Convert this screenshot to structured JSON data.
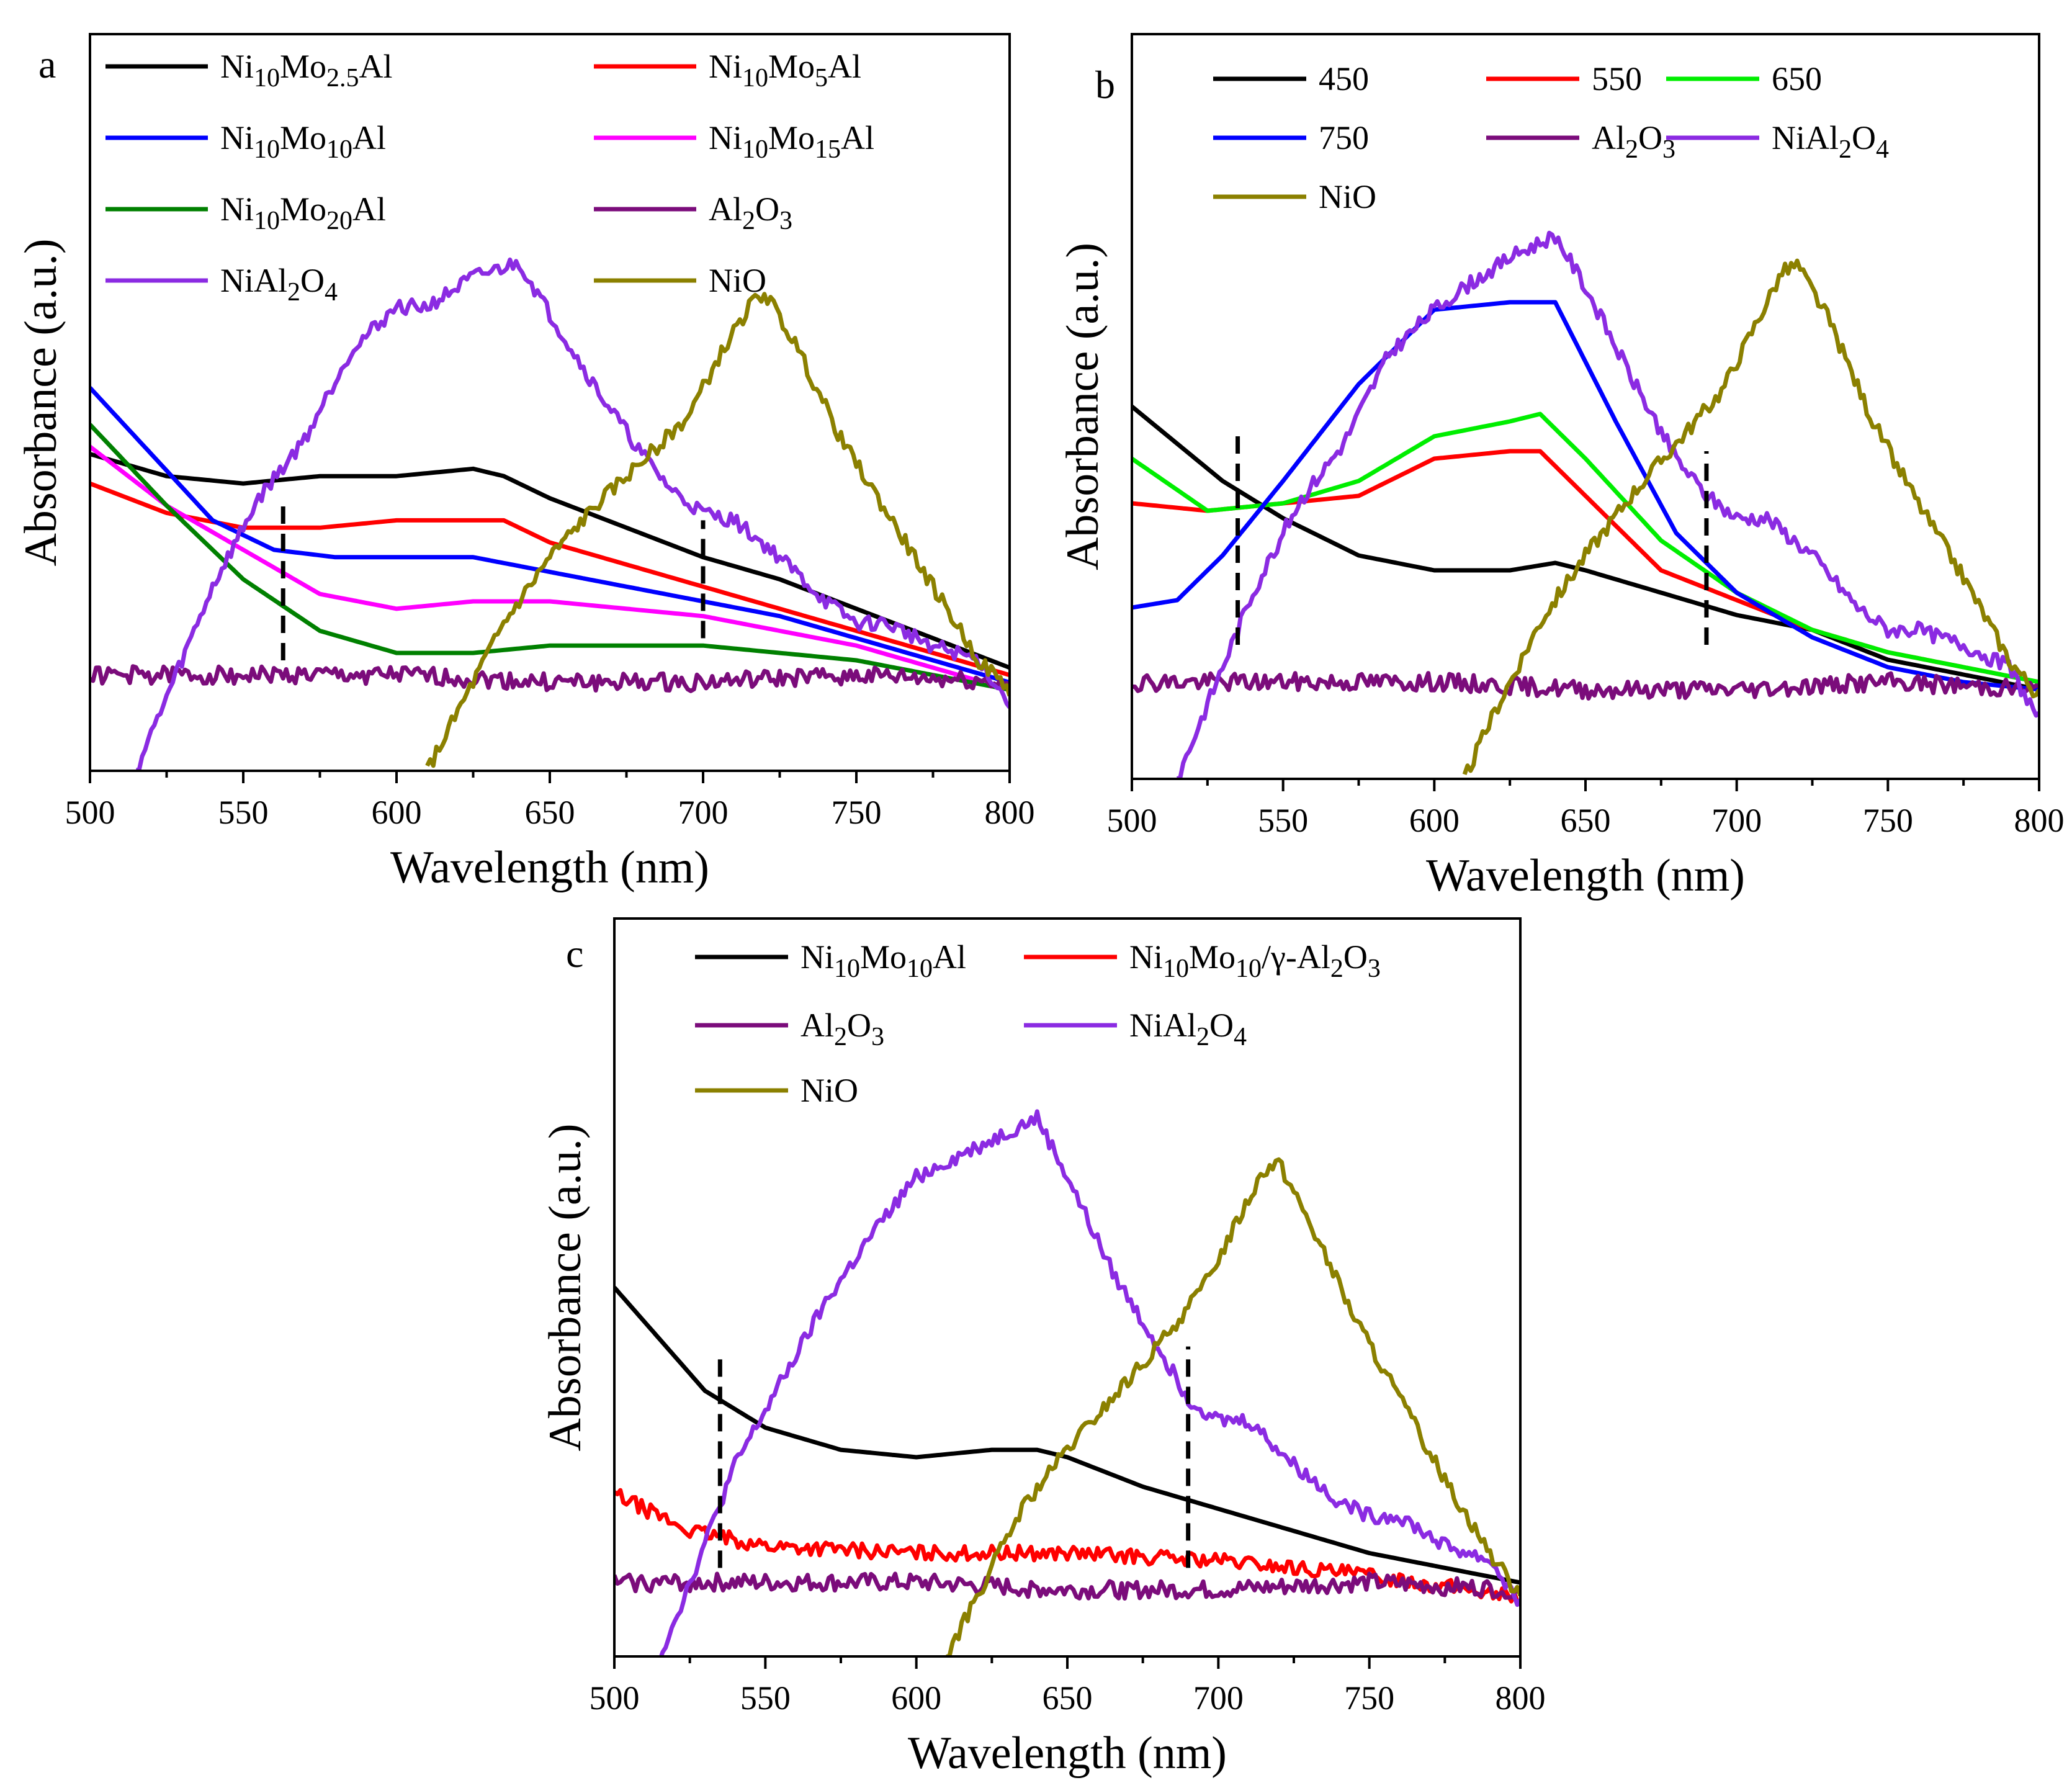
{
  "chart_data": [
    {
      "panel_label": "a",
      "type": "line",
      "xlabel": "Wavelength (nm)",
      "ylabel": "Absorbance (a.u.)",
      "xlim": [
        500,
        800
      ],
      "ylim": [
        0,
        1
      ],
      "x_ticks": [
        "500",
        "550",
        "600",
        "650",
        "700",
        "750",
        "800"
      ],
      "legend": [
        {
          "base": "Ni",
          "parts": [
            [
              "10",
              "sub"
            ],
            [
              "Mo",
              ""
            ],
            [
              "2.5",
              "sub"
            ],
            [
              "Al",
              ""
            ]
          ]
        },
        {
          "base": "Ni",
          "parts": [
            [
              "10",
              "sub"
            ],
            [
              "Mo",
              ""
            ],
            [
              "5",
              "sub"
            ],
            [
              "Al",
              ""
            ]
          ]
        },
        {
          "base": "Ni",
          "parts": [
            [
              "10",
              "sub"
            ],
            [
              "Mo",
              ""
            ],
            [
              "10",
              "sub"
            ],
            [
              "Al",
              ""
            ]
          ]
        },
        {
          "base": "Ni",
          "parts": [
            [
              "10",
              "sub"
            ],
            [
              "Mo",
              ""
            ],
            [
              "15",
              "sub"
            ],
            [
              "Al",
              ""
            ]
          ]
        },
        {
          "base": "Ni",
          "parts": [
            [
              "10",
              "sub"
            ],
            [
              "Mo",
              ""
            ],
            [
              "20",
              "sub"
            ],
            [
              "Al",
              ""
            ]
          ]
        },
        {
          "base": "Al",
          "parts": [
            [
              "2",
              "sub"
            ],
            [
              "O",
              ""
            ],
            [
              "3",
              "sub"
            ]
          ]
        },
        {
          "base": "NiAl",
          "parts": [
            [
              "2",
              "sub"
            ],
            [
              "O",
              ""
            ],
            [
              "4",
              "sub"
            ]
          ]
        },
        {
          "base": "NiO",
          "parts": []
        }
      ],
      "dashed_markers": [
        {
          "x": 563,
          "y": [
            0.15,
            0.36
          ]
        },
        {
          "x": 700,
          "y": [
            0.18,
            0.34
          ]
        }
      ],
      "series": [
        {
          "name": "Ni10Mo2.5Al",
          "color": "#000000",
          "x": [
            500,
            525,
            550,
            575,
            600,
            625,
            635,
            650,
            675,
            700,
            725,
            750,
            775,
            800
          ],
          "values": [
            0.43,
            0.4,
            0.39,
            0.4,
            0.4,
            0.41,
            0.4,
            0.37,
            0.33,
            0.29,
            0.26,
            0.22,
            0.18,
            0.14
          ]
        },
        {
          "name": "Ni10Mo5Al",
          "color": "#ff0000",
          "x": [
            500,
            525,
            550,
            575,
            600,
            625,
            635,
            650,
            675,
            700,
            725,
            750,
            775,
            800
          ],
          "values": [
            0.39,
            0.35,
            0.33,
            0.33,
            0.34,
            0.34,
            0.34,
            0.31,
            0.28,
            0.25,
            0.22,
            0.19,
            0.16,
            0.13
          ]
        },
        {
          "name": "Ni10Mo10Al",
          "color": "#0000ff",
          "x": [
            500,
            520,
            540,
            560,
            580,
            600,
            625,
            650,
            675,
            700,
            725,
            750,
            775,
            800
          ],
          "values": [
            0.52,
            0.43,
            0.34,
            0.3,
            0.29,
            0.29,
            0.29,
            0.27,
            0.25,
            0.23,
            0.21,
            0.18,
            0.15,
            0.12
          ]
        },
        {
          "name": "Ni10Mo15Al",
          "color": "#ff00ff",
          "x": [
            500,
            525,
            550,
            575,
            600,
            625,
            650,
            675,
            700,
            725,
            750,
            775,
            800
          ],
          "values": [
            0.44,
            0.36,
            0.3,
            0.24,
            0.22,
            0.23,
            0.23,
            0.22,
            0.21,
            0.19,
            0.17,
            0.14,
            0.11
          ]
        },
        {
          "name": "Ni10Mo20Al",
          "color": "#008000",
          "x": [
            500,
            525,
            550,
            575,
            600,
            625,
            650,
            675,
            700,
            725,
            750,
            775,
            800
          ],
          "values": [
            0.47,
            0.36,
            0.26,
            0.19,
            0.16,
            0.16,
            0.17,
            0.17,
            0.17,
            0.16,
            0.15,
            0.13,
            0.11
          ]
        },
        {
          "name": "Al2O3",
          "color": "#7b0c7b",
          "noise": 0.012,
          "x": [
            500,
            550,
            600,
            650,
            700,
            750,
            800
          ],
          "values": [
            0.13,
            0.13,
            0.13,
            0.12,
            0.12,
            0.13,
            0.12
          ]
        },
        {
          "name": "NiAl2O4",
          "color": "#8b2be2",
          "noise": 0.01,
          "x": [
            515,
            525,
            540,
            555,
            570,
            585,
            600,
            610,
            625,
            640,
            650,
            665,
            680,
            690,
            700,
            710,
            725,
            740,
            750,
            760,
            775,
            790,
            800
          ],
          "values": [
            0.0,
            0.1,
            0.25,
            0.37,
            0.45,
            0.57,
            0.63,
            0.63,
            0.67,
            0.69,
            0.62,
            0.52,
            0.43,
            0.38,
            0.35,
            0.34,
            0.29,
            0.23,
            0.2,
            0.2,
            0.17,
            0.15,
            0.09
          ]
        },
        {
          "name": "NiO",
          "color": "#8b8000",
          "noise": 0.01,
          "x": [
            610,
            620,
            635,
            650,
            665,
            680,
            695,
            705,
            715,
            720,
            730,
            745,
            760,
            775,
            790,
            800
          ],
          "values": [
            0.0,
            0.08,
            0.2,
            0.29,
            0.36,
            0.42,
            0.48,
            0.56,
            0.63,
            0.65,
            0.58,
            0.45,
            0.35,
            0.25,
            0.15,
            0.11
          ]
        }
      ]
    },
    {
      "panel_label": "b",
      "type": "line",
      "xlabel": "Wavelength (nm)",
      "ylabel": "Absorbance (a.u.)",
      "xlim": [
        500,
        800
      ],
      "ylim": [
        0,
        1
      ],
      "x_ticks": [
        "500",
        "550",
        "600",
        "650",
        "700",
        "750",
        "800"
      ],
      "legend": [
        {
          "base": "450",
          "parts": []
        },
        {
          "base": "550",
          "parts": []
        },
        {
          "base": "650",
          "parts": []
        },
        {
          "base": "750",
          "parts": []
        },
        {
          "base": "Al",
          "parts": [
            [
              "2",
              "sub"
            ],
            [
              "O",
              ""
            ],
            [
              "3",
              "sub"
            ]
          ]
        },
        {
          "base": "NiAl",
          "parts": [
            [
              "2",
              "sub"
            ],
            [
              "O",
              ""
            ],
            [
              "4",
              "sub"
            ]
          ]
        },
        {
          "base": "NiO",
          "parts": []
        }
      ],
      "dashed_markers": [
        {
          "x": 535,
          "y": [
            0.18,
            0.46
          ]
        },
        {
          "x": 690,
          "y": [
            0.18,
            0.44
          ]
        }
      ],
      "series": [
        {
          "name": "450",
          "color": "#000000",
          "x": [
            500,
            515,
            530,
            550,
            575,
            600,
            625,
            640,
            650,
            675,
            700,
            725,
            750,
            775,
            800
          ],
          "values": [
            0.5,
            0.45,
            0.4,
            0.35,
            0.3,
            0.28,
            0.28,
            0.29,
            0.28,
            0.25,
            0.22,
            0.2,
            0.16,
            0.14,
            0.12
          ]
        },
        {
          "name": "550",
          "color": "#ff0000",
          "x": [
            500,
            525,
            550,
            575,
            600,
            625,
            635,
            650,
            675,
            700,
            725,
            750,
            775,
            800
          ],
          "values": [
            0.37,
            0.36,
            0.37,
            0.38,
            0.43,
            0.44,
            0.44,
            0.38,
            0.28,
            0.24,
            0.2,
            0.17,
            0.15,
            0.13
          ]
        },
        {
          "name": "650",
          "color": "#00ee00",
          "x": [
            500,
            525,
            550,
            575,
            600,
            625,
            635,
            650,
            675,
            700,
            725,
            750,
            775,
            800
          ],
          "values": [
            0.43,
            0.36,
            0.37,
            0.4,
            0.46,
            0.48,
            0.49,
            0.43,
            0.32,
            0.25,
            0.2,
            0.17,
            0.15,
            0.13
          ]
        },
        {
          "name": "750",
          "color": "#0000ff",
          "x": [
            500,
            515,
            530,
            550,
            575,
            600,
            625,
            640,
            660,
            680,
            700,
            725,
            750,
            775,
            800
          ],
          "values": [
            0.23,
            0.24,
            0.3,
            0.4,
            0.53,
            0.63,
            0.64,
            0.64,
            0.48,
            0.33,
            0.25,
            0.19,
            0.15,
            0.13,
            0.12
          ]
        },
        {
          "name": "Al2O3",
          "color": "#7b0c7b",
          "noise": 0.012,
          "x": [
            500,
            550,
            600,
            650,
            700,
            750,
            800
          ],
          "values": [
            0.13,
            0.13,
            0.13,
            0.12,
            0.12,
            0.13,
            0.12
          ]
        },
        {
          "name": "NiAl2O4",
          "color": "#8b2be2",
          "noise": 0.01,
          "x": [
            515,
            525,
            540,
            555,
            570,
            585,
            600,
            610,
            625,
            640,
            650,
            665,
            680,
            690,
            700,
            710,
            725,
            740,
            750,
            760,
            775,
            790,
            800
          ],
          "values": [
            0.0,
            0.1,
            0.25,
            0.37,
            0.45,
            0.57,
            0.63,
            0.66,
            0.7,
            0.73,
            0.66,
            0.54,
            0.43,
            0.38,
            0.35,
            0.35,
            0.3,
            0.23,
            0.2,
            0.2,
            0.18,
            0.15,
            0.08
          ]
        },
        {
          "name": "NiO",
          "color": "#8b8000",
          "noise": 0.01,
          "x": [
            610,
            620,
            635,
            650,
            665,
            680,
            695,
            705,
            715,
            720,
            730,
            745,
            760,
            775,
            790,
            800
          ],
          "values": [
            0.0,
            0.09,
            0.21,
            0.3,
            0.38,
            0.45,
            0.52,
            0.6,
            0.68,
            0.69,
            0.62,
            0.48,
            0.37,
            0.27,
            0.16,
            0.11
          ]
        }
      ]
    },
    {
      "panel_label": "c",
      "type": "line",
      "xlabel": "Wavelength (nm)",
      "ylabel": "Absorbance (a.u.)",
      "xlim": [
        500,
        800
      ],
      "ylim": [
        0,
        1
      ],
      "x_ticks": [
        "500",
        "550",
        "600",
        "650",
        "700",
        "750",
        "800"
      ],
      "legend": [
        {
          "base": "Ni",
          "parts": [
            [
              "10",
              "sub"
            ],
            [
              "Mo",
              ""
            ],
            [
              "10",
              "sub"
            ],
            [
              "Al",
              ""
            ]
          ]
        },
        {
          "base": "Ni",
          "parts": [
            [
              "10",
              "sub"
            ],
            [
              "Mo",
              ""
            ],
            [
              "10",
              "sub"
            ],
            [
              "/γ-Al",
              ""
            ],
            [
              "2",
              "sub"
            ],
            [
              "O",
              ""
            ],
            [
              "3",
              "sub"
            ]
          ]
        },
        {
          "base": "Al",
          "parts": [
            [
              "2",
              "sub"
            ],
            [
              "O",
              ""
            ],
            [
              "3",
              "sub"
            ]
          ]
        },
        {
          "base": "NiAl",
          "parts": [
            [
              "2",
              "sub"
            ],
            [
              "O",
              ""
            ],
            [
              "4",
              "sub"
            ]
          ]
        },
        {
          "base": "NiO",
          "parts": []
        }
      ],
      "dashed_markers": [
        {
          "x": 535,
          "y": [
            0.12,
            0.41
          ]
        },
        {
          "x": 690,
          "y": [
            0.12,
            0.42
          ]
        }
      ],
      "series": [
        {
          "name": "Ni10Mo10Al",
          "color": "#000000",
          "x": [
            500,
            515,
            530,
            550,
            575,
            600,
            625,
            640,
            650,
            675,
            700,
            725,
            750,
            775,
            800
          ],
          "values": [
            0.5,
            0.43,
            0.36,
            0.31,
            0.28,
            0.27,
            0.28,
            0.28,
            0.27,
            0.23,
            0.2,
            0.17,
            0.14,
            0.12,
            0.1
          ]
        },
        {
          "name": "Ni10Mo10/γ-Al2O3",
          "color": "#ff0000",
          "noise": 0.01,
          "x": [
            500,
            525,
            550,
            600,
            650,
            700,
            750,
            800
          ],
          "values": [
            0.22,
            0.17,
            0.15,
            0.14,
            0.14,
            0.13,
            0.11,
            0.08
          ]
        },
        {
          "name": "Al2O3",
          "color": "#7b0c7b",
          "noise": 0.012,
          "x": [
            500,
            550,
            600,
            650,
            700,
            750,
            800
          ],
          "values": [
            0.1,
            0.1,
            0.1,
            0.09,
            0.09,
            0.1,
            0.09
          ]
        },
        {
          "name": "NiAl2O4",
          "color": "#8b2be2",
          "noise": 0.01,
          "x": [
            515,
            525,
            540,
            555,
            570,
            585,
            600,
            610,
            625,
            640,
            650,
            665,
            680,
            690,
            700,
            710,
            725,
            740,
            750,
            760,
            775,
            790,
            800
          ],
          "values": [
            0.0,
            0.1,
            0.26,
            0.37,
            0.48,
            0.57,
            0.65,
            0.67,
            0.7,
            0.73,
            0.65,
            0.52,
            0.42,
            0.35,
            0.32,
            0.32,
            0.26,
            0.21,
            0.19,
            0.19,
            0.15,
            0.13,
            0.07
          ]
        },
        {
          "name": "NiO",
          "color": "#8b8000",
          "noise": 0.01,
          "x": [
            610,
            620,
            635,
            650,
            665,
            680,
            695,
            705,
            715,
            720,
            730,
            745,
            760,
            775,
            790,
            800
          ],
          "values": [
            0.0,
            0.08,
            0.2,
            0.28,
            0.35,
            0.42,
            0.5,
            0.58,
            0.66,
            0.67,
            0.59,
            0.46,
            0.35,
            0.24,
            0.14,
            0.08
          ]
        }
      ]
    }
  ]
}
